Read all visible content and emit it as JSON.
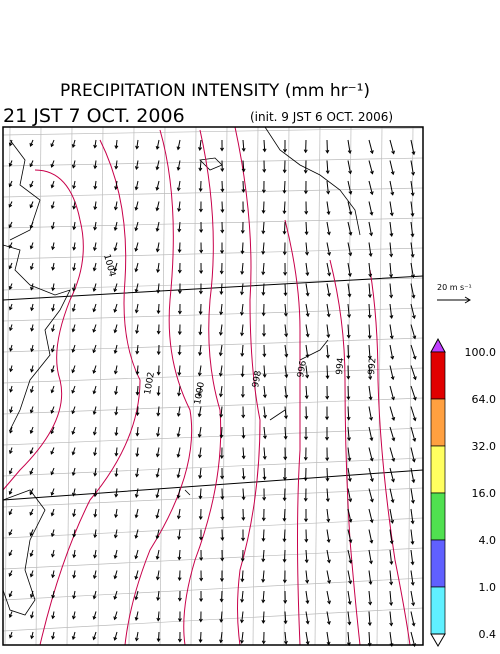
{
  "header": {
    "title": "PRECIPITATION INTENSITY (mm hr⁻¹)",
    "valid_time": "21 JST 7 OCT. 2006",
    "init_time": "(init. 9 JST 6 OCT. 2006)"
  },
  "wind_scale": {
    "label": "20 m s⁻¹"
  },
  "colorbar": {
    "labels": [
      "100.0",
      "64.0",
      "32.0",
      "16.0",
      "4.0",
      "1.0",
      "0.4"
    ],
    "colors": [
      "#e00000",
      "#ffa040",
      "#ffff60",
      "#50e050",
      "#6060ff",
      "#60f0ff"
    ],
    "top_color": "#c040ff",
    "bottom_color": "#ffffff"
  },
  "contours": {
    "labels": [
      "1004",
      "1002",
      "1000",
      "998",
      "996",
      "994",
      "992"
    ]
  }
}
